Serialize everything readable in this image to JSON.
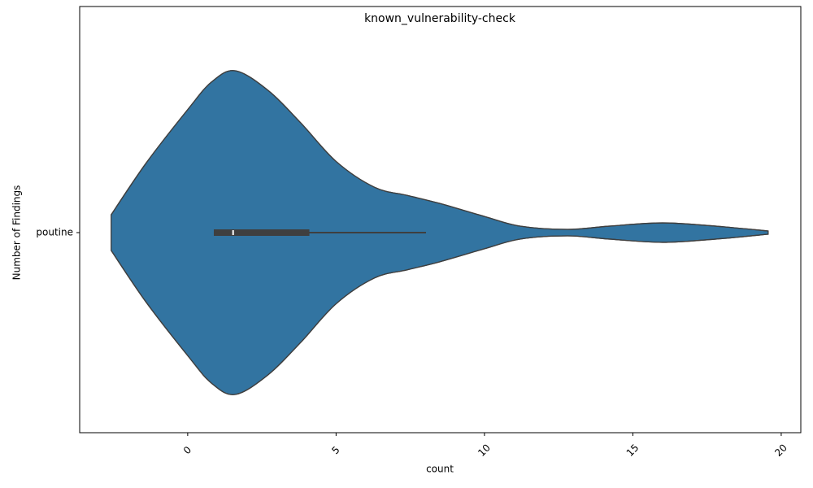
{
  "chart_data": {
    "type": "violin",
    "title": "known_vulnerability-check",
    "x_label": "count",
    "y_label": "Number of Findings",
    "categories": [
      "poutine"
    ],
    "series": [
      {
        "color": "#3274a1",
        "kde_x": [
          -2.58,
          -1.4,
          0,
          0.8,
          1.6,
          2.7,
          3.8,
          5,
          6.3,
          7.4,
          8.5,
          10,
          11.2,
          12.8,
          14.2,
          16,
          17.8,
          19.56
        ],
        "kde_density": [
          0.11,
          0.43,
          0.76,
          0.93,
          1,
          0.88,
          0.68,
          0.44,
          0.28,
          0.23,
          0.18,
          0.1,
          0.04,
          0.02,
          0.04,
          0.06,
          0.04,
          0.01
        ],
        "whisker_low": 0.88,
        "q1": 0.88,
        "median": 1.53,
        "q3": 4.1,
        "whisker_high": 8.03
      }
    ],
    "xlim": [
      -3.64,
      20.66
    ],
    "xticks": [
      0,
      5,
      10,
      15,
      20
    ],
    "edge_color": "#3f3f3f"
  }
}
